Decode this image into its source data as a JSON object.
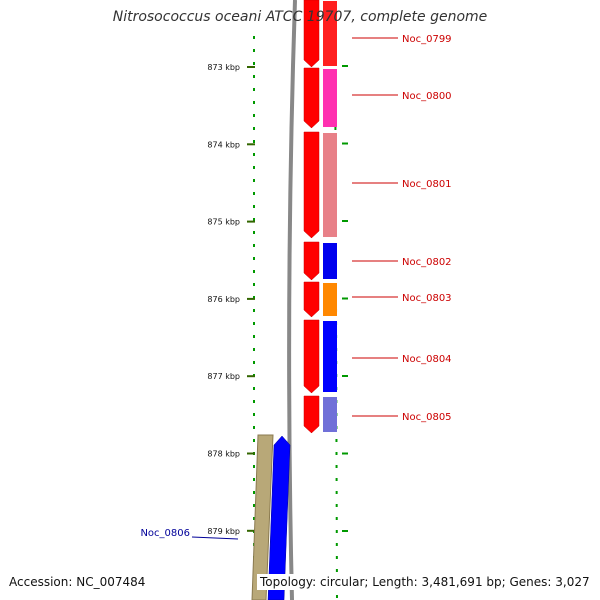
{
  "title": "Nitrosococcus oceani ATCC 19707, complete genome",
  "accession": "Accession: NC_007484",
  "topology": "Topology: circular; Length: 3,481,691 bp; Genes: 3,027",
  "ticks": [
    "873 kbp",
    "874 kbp",
    "875 kbp",
    "876 kbp",
    "877 kbp",
    "878 kbp",
    "879 kbp"
  ],
  "genes": [
    {
      "label": "Noc_0799",
      "color": "#cc0000",
      "strand": "forward"
    },
    {
      "label": "Noc_0800",
      "color": "#cc0000",
      "strand": "forward"
    },
    {
      "label": "Noc_0801",
      "color": "#cc0000",
      "strand": "forward"
    },
    {
      "label": "Noc_0802",
      "color": "#cc0000",
      "strand": "forward"
    },
    {
      "label": "Noc_0803",
      "color": "#cc0000",
      "strand": "forward"
    },
    {
      "label": "Noc_0804",
      "color": "#cc0000",
      "strand": "forward"
    },
    {
      "label": "Noc_0805",
      "color": "#cc0000",
      "strand": "forward"
    },
    {
      "label": "Noc_0806",
      "color": "#000099",
      "strand": "reverse"
    }
  ],
  "colors": {
    "backbone": "#888888",
    "tick": "#336600",
    "dots": "#009900",
    "forward_gene": "#ff0000",
    "reverse_gene": "#0000ff",
    "reverse_category": "#b8a878",
    "categories": [
      "#ff2020",
      "#ff30b0",
      "#e88088",
      "#0000ee",
      "#ff8800",
      "#0000ff",
      "#7070d8"
    ]
  }
}
